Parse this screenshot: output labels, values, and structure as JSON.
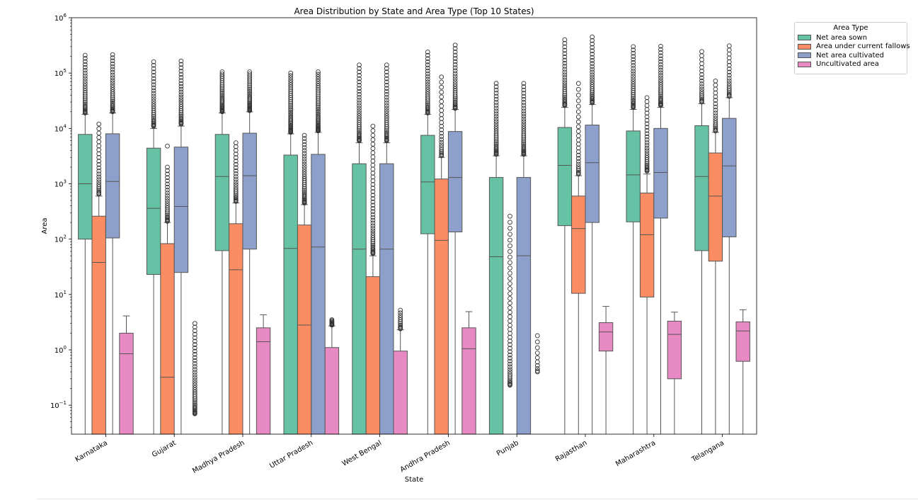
{
  "chart_data": {
    "type": "box",
    "title": "Area Distribution by State and Area Type (Top 10 States)",
    "xlabel": "State",
    "ylabel": "Area",
    "yscale": "log",
    "ylim": [
      0.03,
      1000000
    ],
    "yticks": [
      {
        "value": 0.1,
        "base": "10",
        "exp": "−1"
      },
      {
        "value": 1,
        "base": "10",
        "exp": "0"
      },
      {
        "value": 10,
        "base": "10",
        "exp": "1"
      },
      {
        "value": 100,
        "base": "10",
        "exp": "2"
      },
      {
        "value": 1000,
        "base": "10",
        "exp": "3"
      },
      {
        "value": 10000,
        "base": "10",
        "exp": "4"
      },
      {
        "value": 100000,
        "base": "10",
        "exp": "5"
      },
      {
        "value": 1000000,
        "base": "10",
        "exp": "6"
      }
    ],
    "grid": false,
    "legend_position": "outside-top-right",
    "legend_title": "Area Type",
    "series": [
      {
        "name": "Net area sown",
        "color": "#66c2a5"
      },
      {
        "name": "Area under current fallows",
        "color": "#fc8d62"
      },
      {
        "name": "Net area cultivated",
        "color": "#8da0cb"
      },
      {
        "name": "Uncultivated area",
        "color": "#e78ac3"
      }
    ],
    "categories": [
      "Karnataka",
      "Gujarat",
      "Madhya Pradesh",
      "Uttar Pradesh",
      "West Bengal",
      "Andhra Pradesh",
      "Punjab",
      "Rajasthan",
      "Maharashtra",
      "Telangana"
    ],
    "boxes": [
      [
        {
          "q1": 100,
          "median": 1000,
          "q3": 7800,
          "whislo": 0.03,
          "whishi": 18000,
          "fliers": {
            "lo": 19000,
            "hi": 210000,
            "n": 30
          }
        },
        {
          "q1": 0.03,
          "median": 38,
          "q3": 260,
          "whislo": 0.03,
          "whishi": 600,
          "fliers": {
            "lo": 650,
            "hi": 12000,
            "n": 25
          }
        },
        {
          "q1": 105,
          "median": 1100,
          "q3": 8000,
          "whislo": 0.03,
          "whishi": 19000,
          "fliers": {
            "lo": 20000,
            "hi": 215000,
            "n": 30
          }
        },
        {
          "q1": 0.03,
          "median": 0.85,
          "q3": 2,
          "whislo": 0.03,
          "whishi": 4.1,
          "fliers": null
        }
      ],
      [
        {
          "q1": 23,
          "median": 360,
          "q3": 4400,
          "whislo": 0.03,
          "whishi": 10000,
          "fliers": {
            "lo": 11000,
            "hi": 160000,
            "n": 30
          }
        },
        {
          "q1": 0.03,
          "median": 0.32,
          "q3": 83,
          "whislo": 0.03,
          "whishi": 200,
          "fliers": {
            "lo": 210,
            "hi": 2000,
            "n": 25,
            "extra": [
              4800
            ]
          }
        },
        {
          "q1": 25,
          "median": 390,
          "q3": 4600,
          "whislo": 0.03,
          "whishi": 11000,
          "fliers": {
            "lo": 12000,
            "hi": 165000,
            "n": 30
          }
        },
        {
          "q1": null,
          "median": null,
          "q3": null,
          "whislo": null,
          "whishi": null,
          "fliers": {
            "lo": 0.07,
            "hi": 3,
            "n": 40
          }
        }
      ],
      [
        {
          "q1": 62,
          "median": 1350,
          "q3": 7800,
          "whislo": 0.03,
          "whishi": 19000,
          "fliers": {
            "lo": 20000,
            "hi": 105000,
            "n": 30
          }
        },
        {
          "q1": 0.03,
          "median": 28,
          "q3": 190,
          "whislo": 0.03,
          "whishi": 450,
          "fliers": {
            "lo": 480,
            "hi": 5500,
            "n": 25
          }
        },
        {
          "q1": 66,
          "median": 1400,
          "q3": 8200,
          "whislo": 0.03,
          "whishi": 20000,
          "fliers": {
            "lo": 21000,
            "hi": 105000,
            "n": 30
          }
        },
        {
          "q1": 0.03,
          "median": 1.4,
          "q3": 2.5,
          "whislo": 0.03,
          "whishi": 4.3,
          "fliers": null
        }
      ],
      [
        {
          "q1": 0.03,
          "median": 68,
          "q3": 3300,
          "whislo": 0.03,
          "whishi": 8000,
          "fliers": {
            "lo": 8500,
            "hi": 100000,
            "n": 40
          }
        },
        {
          "q1": 0.03,
          "median": 2.8,
          "q3": 180,
          "whislo": 0.03,
          "whishi": 420,
          "fliers": {
            "lo": 450,
            "hi": 7500,
            "n": 35
          }
        },
        {
          "q1": 0.03,
          "median": 72,
          "q3": 3400,
          "whislo": 0.03,
          "whishi": 8500,
          "fliers": {
            "lo": 9000,
            "hi": 105000,
            "n": 40
          }
        },
        {
          "q1": 0.03,
          "median": 0.03,
          "q3": 1.1,
          "whislo": 0.03,
          "whishi": 2.7,
          "fliers": {
            "lo": 2.8,
            "hi": 3.5,
            "n": 10
          }
        }
      ],
      [
        {
          "q1": 0.03,
          "median": 66,
          "q3": 2300,
          "whislo": 0.03,
          "whishi": 5500,
          "fliers": {
            "lo": 6000,
            "hi": 140000,
            "n": 35
          }
        },
        {
          "q1": 0.03,
          "median": 0.03,
          "q3": 21,
          "whislo": 0.03,
          "whishi": 50,
          "fliers": {
            "lo": 55,
            "hi": 11000,
            "n": 45
          }
        },
        {
          "q1": 0.03,
          "median": 66,
          "q3": 2300,
          "whislo": 0.03,
          "whishi": 5500,
          "fliers": {
            "lo": 6000,
            "hi": 140000,
            "n": 35
          }
        },
        {
          "q1": 0.03,
          "median": 0.03,
          "q3": 0.95,
          "whislo": 0.03,
          "whishi": 2.3,
          "fliers": {
            "lo": 2.4,
            "hi": 5.2,
            "n": 12
          }
        }
      ],
      [
        {
          "q1": 125,
          "median": 1080,
          "q3": 7500,
          "whislo": 0.03,
          "whishi": 18000,
          "fliers": {
            "lo": 19000,
            "hi": 240000,
            "n": 30
          }
        },
        {
          "q1": 0.03,
          "median": 95,
          "q3": 1220,
          "whislo": 0.03,
          "whishi": 3000,
          "fliers": {
            "lo": 3200,
            "hi": 85000,
            "n": 25
          }
        },
        {
          "q1": 135,
          "median": 1300,
          "q3": 8800,
          "whislo": 0.03,
          "whishi": 22000,
          "fliers": {
            "lo": 23000,
            "hi": 320000,
            "n": 30
          }
        },
        {
          "q1": 0.03,
          "median": 1.05,
          "q3": 2.5,
          "whislo": 0.03,
          "whishi": 4.9,
          "fliers": null
        }
      ],
      [
        {
          "q1": 0.03,
          "median": 48,
          "q3": 1300,
          "whislo": 0.03,
          "whishi": 3200,
          "fliers": {
            "lo": 3400,
            "hi": 65000,
            "n": 35
          }
        },
        {
          "q1": null,
          "median": null,
          "q3": null,
          "whislo": null,
          "whishi": null,
          "fliers": {
            "lo": 0.23,
            "hi": 260,
            "n": 45
          }
        },
        {
          "q1": 0.03,
          "median": 50,
          "q3": 1300,
          "whislo": 0.03,
          "whishi": 3200,
          "fliers": {
            "lo": 3400,
            "hi": 65000,
            "n": 35
          }
        },
        {
          "q1": null,
          "median": null,
          "q3": null,
          "whislo": null,
          "whishi": null,
          "fliers": {
            "lo": 0.4,
            "hi": 1.8,
            "n": 10
          }
        }
      ],
      [
        {
          "q1": 175,
          "median": 2150,
          "q3": 10400,
          "whislo": 0.03,
          "whishi": 24000,
          "fliers": {
            "lo": 26000,
            "hi": 400000,
            "n": 30
          }
        },
        {
          "q1": 10.5,
          "median": 155,
          "q3": 600,
          "whislo": 0.03,
          "whishi": 1400,
          "fliers": {
            "lo": 1500,
            "hi": 65000,
            "n": 25
          }
        },
        {
          "q1": 200,
          "median": 2400,
          "q3": 11500,
          "whislo": 0.03,
          "whishi": 27000,
          "fliers": {
            "lo": 29000,
            "hi": 450000,
            "n": 30
          }
        },
        {
          "q1": 0.95,
          "median": 2.1,
          "q3": 3.1,
          "whislo": 0.03,
          "whishi": 6.1,
          "fliers": null
        }
      ],
      [
        {
          "q1": 205,
          "median": 1450,
          "q3": 9000,
          "whislo": 0.03,
          "whishi": 22000,
          "fliers": {
            "lo": 24000,
            "hi": 300000,
            "n": 30
          }
        },
        {
          "q1": 9,
          "median": 120,
          "q3": 680,
          "whislo": 0.03,
          "whishi": 1500,
          "fliers": {
            "lo": 1700,
            "hi": 36000,
            "n": 30
          }
        },
        {
          "q1": 240,
          "median": 1600,
          "q3": 10000,
          "whislo": 0.03,
          "whishi": 24000,
          "fliers": {
            "lo": 26000,
            "hi": 305000,
            "n": 30
          }
        },
        {
          "q1": 0.3,
          "median": 1.9,
          "q3": 3.3,
          "whislo": 0.03,
          "whishi": 4.8,
          "fliers": null
        }
      ],
      [
        {
          "q1": 62,
          "median": 1350,
          "q3": 11200,
          "whislo": 0.03,
          "whishi": 28000,
          "fliers": {
            "lo": 30000,
            "hi": 245000,
            "n": 20
          }
        },
        {
          "q1": 40,
          "median": 600,
          "q3": 3600,
          "whislo": 0.03,
          "whishi": 8500,
          "fliers": {
            "lo": 9000,
            "hi": 72000,
            "n": 20
          }
        },
        {
          "q1": 110,
          "median": 2100,
          "q3": 15200,
          "whislo": 0.03,
          "whishi": 36000,
          "fliers": {
            "lo": 38000,
            "hi": 310000,
            "n": 20
          }
        },
        {
          "q1": 0.62,
          "median": 2.2,
          "q3": 3.2,
          "whislo": 0.03,
          "whishi": 5.3,
          "fliers": null
        }
      ]
    ]
  }
}
